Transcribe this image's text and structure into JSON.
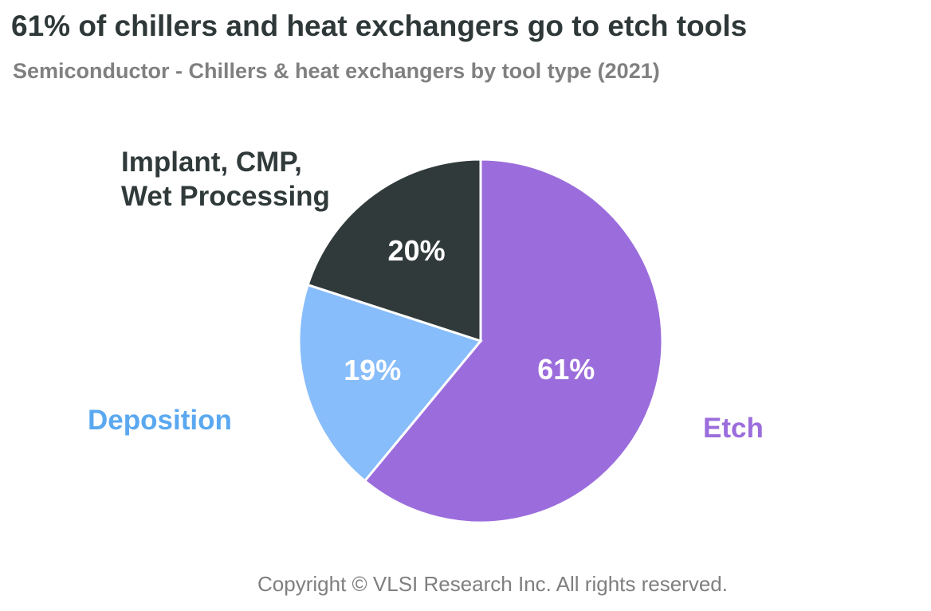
{
  "chart_data": {
    "type": "pie",
    "title": "61% of chillers and heat exchangers go to etch tools",
    "subtitle": "Semiconductor - Chillers & heat exchangers by tool type (2021)",
    "categories": [
      "Etch",
      "Deposition",
      "Implant, CMP, Wet Processing"
    ],
    "values": [
      61,
      19,
      20
    ],
    "value_labels": [
      "61%",
      "19%",
      "20%"
    ],
    "colors": [
      "#9b6ddc",
      "#88bdfb",
      "#313a3a"
    ],
    "label_colors": [
      "#9b6ddc",
      "#5aa8f0",
      "#313a3a"
    ],
    "copyright": "Copyright © VLSI Research Inc.  All rights reserved."
  }
}
